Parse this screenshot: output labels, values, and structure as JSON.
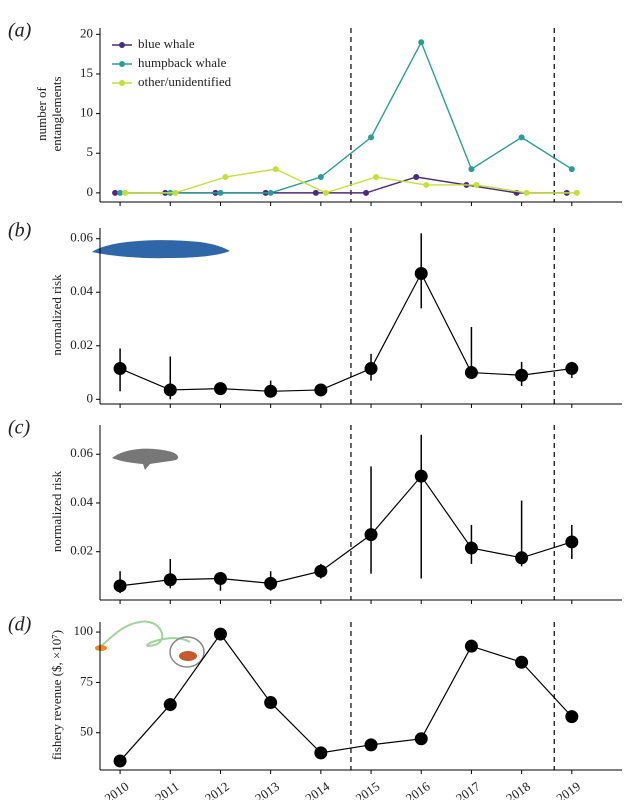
{
  "chart_data": [
    {
      "type": "line",
      "panel_label": "(a)",
      "ylabel_lines": [
        "number of",
        "entanglements"
      ],
      "x": [
        2010,
        2011,
        2012,
        2013,
        2014,
        2015,
        2016,
        2017,
        2018,
        2019
      ],
      "xlim": [
        2009.6,
        2020
      ],
      "ylim": [
        -0.9,
        20.8
      ],
      "yticks": [
        0,
        5,
        10,
        15,
        20
      ],
      "vlines": [
        2014.6,
        2018.65
      ],
      "legend": "upper left",
      "series": [
        {
          "name": "blue whale",
          "color": "#4b2a7f",
          "values": [
            0,
            0,
            0,
            0,
            0,
            0,
            2,
            1,
            0,
            0
          ]
        },
        {
          "name": "humpback whale",
          "color": "#2a9d99",
          "values": [
            0,
            0,
            0,
            0,
            2,
            7,
            19,
            3,
            7,
            3
          ]
        },
        {
          "name": "other/unidentified",
          "color": "#c3e03a",
          "values": [
            0,
            0,
            2,
            3,
            0,
            2,
            1,
            1,
            0,
            0
          ]
        }
      ]
    },
    {
      "type": "errorline",
      "panel_label": "(b)",
      "ylabel_lines": [
        "normalized risk"
      ],
      "x": [
        2010,
        2011,
        2012,
        2013,
        2014,
        2015,
        2016,
        2017,
        2018,
        2019
      ],
      "xlim": [
        2009.6,
        2020
      ],
      "ylim": [
        -0.001,
        0.064
      ],
      "yticks": [
        0,
        0.02,
        0.04,
        0.06
      ],
      "vlines": [
        2014.6,
        2018.65
      ],
      "color": "#000000",
      "values": [
        0.0115,
        0.0035,
        0.004,
        0.003,
        0.0035,
        0.0115,
        0.047,
        0.01,
        0.009,
        0.0115
      ],
      "lower": [
        0.003,
        0.0,
        0.003,
        0.001,
        0.002,
        0.007,
        0.034,
        0.0095,
        0.005,
        0.008
      ],
      "upper": [
        0.019,
        0.016,
        0.005,
        0.007,
        0.005,
        0.017,
        0.062,
        0.027,
        0.014,
        0.014
      ]
    },
    {
      "type": "errorline",
      "panel_label": "(c)",
      "ylabel_lines": [
        "normalized risk"
      ],
      "x": [
        2010,
        2011,
        2012,
        2013,
        2014,
        2015,
        2016,
        2017,
        2018,
        2019
      ],
      "xlim": [
        2009.6,
        2020
      ],
      "ylim": [
        0.001,
        0.072
      ],
      "yticks": [
        0.02,
        0.04,
        0.06
      ],
      "vlines": [
        2014.6,
        2018.65
      ],
      "color": "#000000",
      "values": [
        0.006,
        0.0085,
        0.009,
        0.007,
        0.012,
        0.027,
        0.051,
        0.0215,
        0.0175,
        0.024
      ],
      "lower": [
        0.003,
        0.005,
        0.004,
        0.004,
        0.009,
        0.011,
        0.009,
        0.015,
        0.014,
        0.017
      ],
      "upper": [
        0.012,
        0.017,
        0.011,
        0.012,
        0.015,
        0.055,
        0.068,
        0.031,
        0.041,
        0.031
      ]
    },
    {
      "type": "line",
      "panel_label": "(d)",
      "ylabel_lines": [
        "fishery revenue ($, ×10⁷)"
      ],
      "x": [
        2010,
        2011,
        2012,
        2013,
        2014,
        2015,
        2016,
        2017,
        2018,
        2019
      ],
      "xlim": [
        2009.6,
        2020
      ],
      "ylim": [
        32.5,
        105
      ],
      "yticks": [
        50,
        75,
        100
      ],
      "xticks": [
        2010,
        2011,
        2012,
        2013,
        2014,
        2015,
        2016,
        2017,
        2018,
        2019
      ],
      "vlines": [
        2014.6,
        2018.65
      ],
      "color": "#000000",
      "values": [
        36,
        64,
        99,
        65,
        40,
        44,
        47,
        93,
        85,
        58
      ]
    }
  ]
}
